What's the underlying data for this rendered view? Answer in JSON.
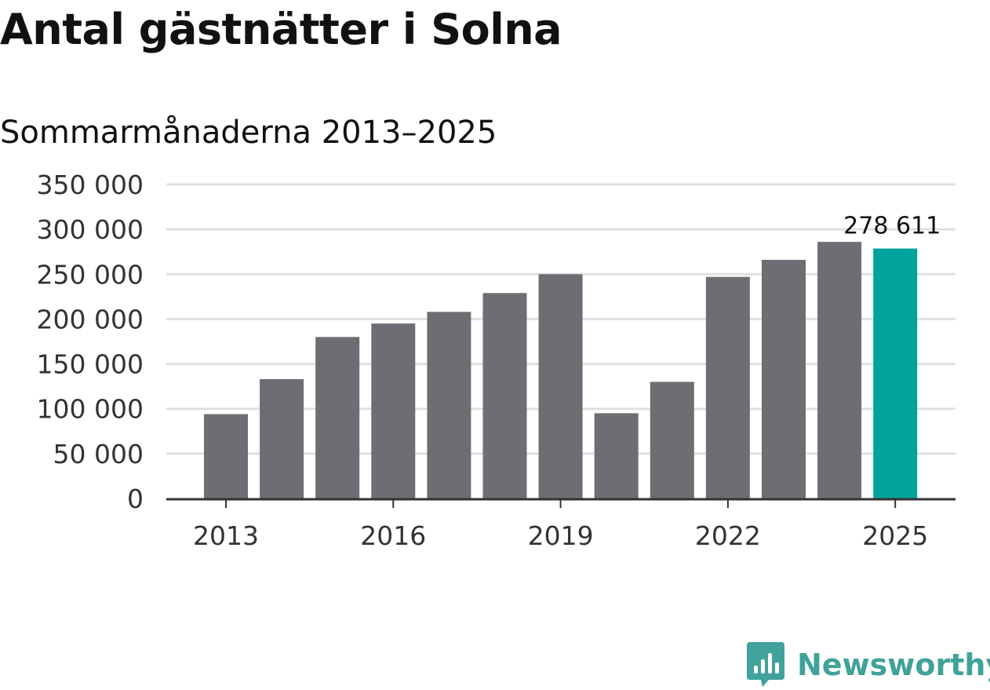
{
  "title": "Antal gästnätter i Solna",
  "subtitle": "Sommarmånaderna 2013–2025",
  "brand": {
    "name": "Newsworthy",
    "icon": "newsworthy-logo-icon",
    "color": "#40a29a"
  },
  "chart_data": {
    "type": "bar",
    "title": "Antal gästnätter i Solna",
    "subtitle": "Sommarmånaderna 2013–2025",
    "xlabel": "",
    "ylabel": "",
    "categories": [
      "2013",
      "2014",
      "2015",
      "2016",
      "2017",
      "2018",
      "2019",
      "2020",
      "2021",
      "2022",
      "2023",
      "2024",
      "2025"
    ],
    "values": [
      94000,
      133000,
      180000,
      195000,
      208000,
      229000,
      250000,
      95000,
      130000,
      247000,
      266000,
      286000,
      278611
    ],
    "ylim": [
      0,
      350000
    ],
    "yticks": [
      0,
      50000,
      100000,
      150000,
      200000,
      250000,
      300000,
      350000
    ],
    "ytick_labels": [
      "0",
      "50 000",
      "100 000",
      "150 000",
      "200 000",
      "250 000",
      "300 000",
      "350 000"
    ],
    "xtick_labels": [
      "2013",
      "2016",
      "2019",
      "2022",
      "2025"
    ],
    "highlight_index": 12,
    "data_labels": [
      {
        "index": 12,
        "text": "278 611"
      }
    ],
    "grid": true,
    "legend": "none",
    "colors": {
      "bar": "#6e6d73",
      "highlight": "#00a39a",
      "grid": "#e0e0e0",
      "axis": "#333333",
      "tick_text": "#333333"
    }
  }
}
